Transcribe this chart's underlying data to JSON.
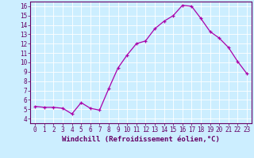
{
  "x": [
    0,
    1,
    2,
    3,
    4,
    5,
    6,
    7,
    8,
    9,
    10,
    11,
    12,
    13,
    14,
    15,
    16,
    17,
    18,
    19,
    20,
    21,
    22,
    23
  ],
  "y": [
    5.3,
    5.2,
    5.2,
    5.1,
    4.5,
    5.7,
    5.1,
    4.9,
    7.2,
    9.4,
    10.8,
    12.0,
    12.3,
    13.6,
    14.4,
    15.0,
    16.1,
    16.0,
    14.7,
    13.3,
    12.6,
    11.6,
    10.1,
    8.8
  ],
  "line_color": "#aa00aa",
  "marker": "+",
  "marker_size": 3,
  "xlabel": "Windchill (Refroidissement éolien,°C)",
  "xlim": [
    -0.5,
    23.5
  ],
  "ylim": [
    3.5,
    16.5
  ],
  "yticks": [
    4,
    5,
    6,
    7,
    8,
    9,
    10,
    11,
    12,
    13,
    14,
    15,
    16
  ],
  "xticks": [
    0,
    1,
    2,
    3,
    4,
    5,
    6,
    7,
    8,
    9,
    10,
    11,
    12,
    13,
    14,
    15,
    16,
    17,
    18,
    19,
    20,
    21,
    22,
    23
  ],
  "bg_color": "#cceeff",
  "grid_color": "#ffffff",
  "tick_fontsize": 5.5,
  "xlabel_fontsize": 6.5,
  "line_color_spine": "#660066"
}
